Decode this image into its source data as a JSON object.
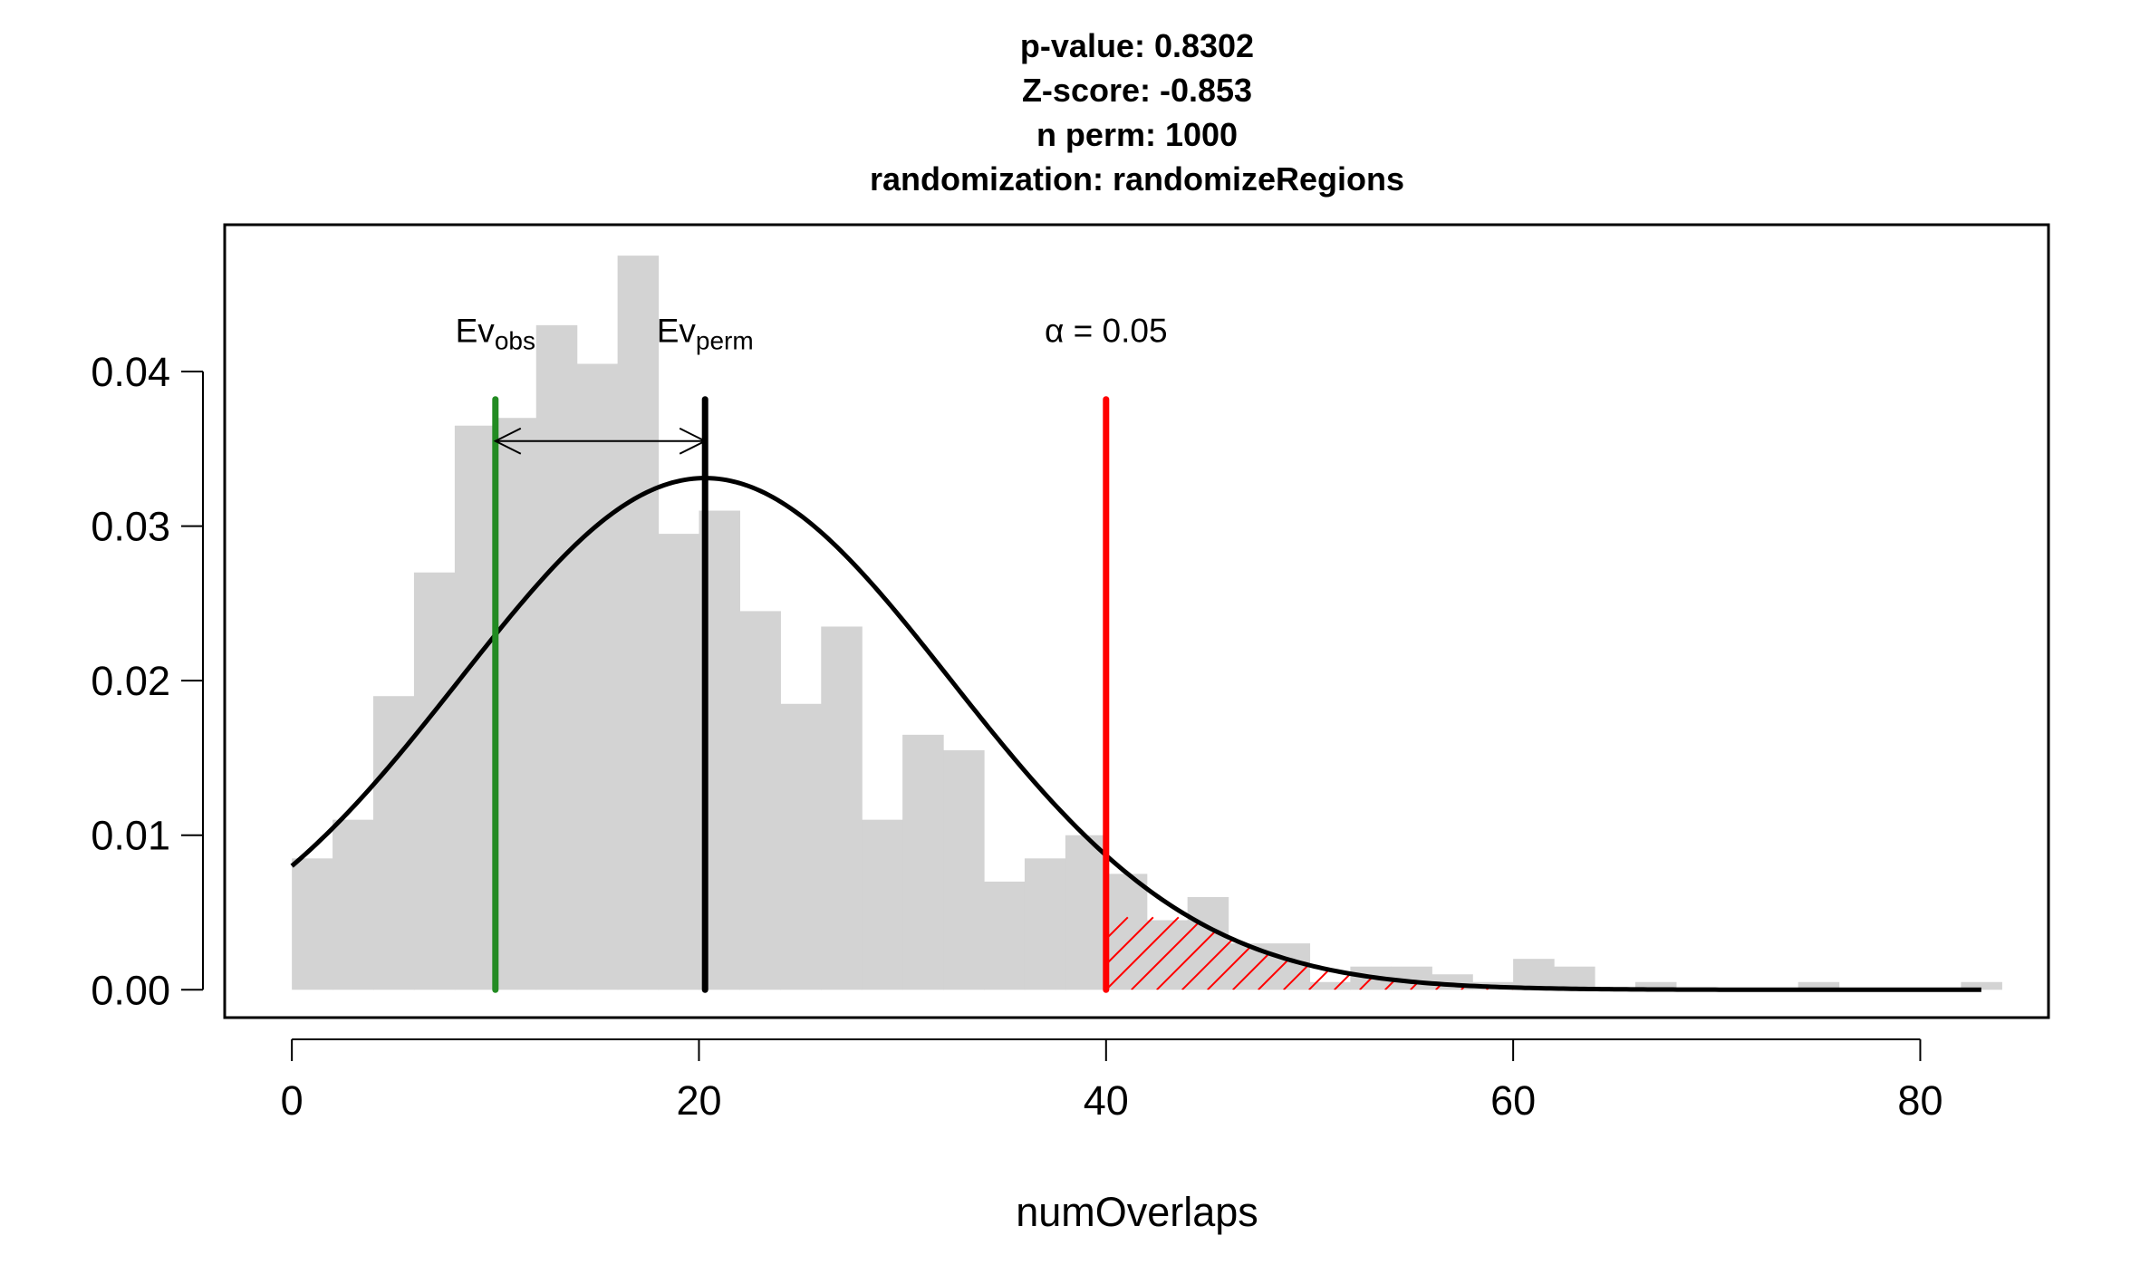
{
  "chart_data": {
    "type": "histogram",
    "title_lines": [
      "p-value:  0.8302",
      "Z-score:  -0.853",
      "n perm:  1000",
      "randomization:  randomizeRegions"
    ],
    "xlabel": "numOverlaps",
    "ylabel": "",
    "xlim": [
      -3.3,
      86.3
    ],
    "ylim": [
      -0.0018,
      0.0495
    ],
    "x_ticks": [
      0,
      20,
      40,
      60,
      80
    ],
    "y_ticks": [
      0.0,
      0.01,
      0.02,
      0.03,
      0.04
    ],
    "y_tick_labels": [
      "0.00",
      "0.01",
      "0.02",
      "0.03",
      "0.04"
    ],
    "bins": {
      "edges": [
        0,
        2,
        4,
        6,
        8,
        10,
        12,
        14,
        16,
        18,
        20,
        22,
        24,
        26,
        28,
        30,
        32,
        34,
        36,
        38,
        40,
        42,
        44,
        46,
        48,
        50,
        52,
        54,
        56,
        58,
        60,
        62,
        64,
        66,
        68,
        70,
        72,
        74,
        76,
        78,
        80,
        82,
        84
      ],
      "density": [
        0.0085,
        0.011,
        0.019,
        0.027,
        0.0365,
        0.037,
        0.043,
        0.0405,
        0.0475,
        0.0295,
        0.031,
        0.0245,
        0.0185,
        0.0235,
        0.011,
        0.0165,
        0.0155,
        0.007,
        0.0085,
        0.01,
        0.0075,
        0.0045,
        0.006,
        0.003,
        0.003,
        0.0005,
        0.0015,
        0.0015,
        0.001,
        0.0005,
        0.002,
        0.0015,
        0.0,
        0.0005,
        0.0,
        0.0,
        0.0,
        0.0005,
        0.0,
        0.0,
        0.0,
        0.0005
      ]
    },
    "normal_curve": {
      "mean": 20.3,
      "sd": 12.05,
      "x_from": 0,
      "x_to": 83
    },
    "ev_obs": {
      "x": 10,
      "label": "Ev",
      "sub": "obs",
      "color": "#228B22"
    },
    "ev_perm": {
      "x": 20.3,
      "label": "Ev",
      "sub": "perm",
      "color": "#000000"
    },
    "alpha": {
      "x": 40,
      "label": "α = 0.05",
      "color": "#FF0000"
    },
    "arrow_y": 0.0355,
    "line_top": 0.0382,
    "bar_color": "#D3D3D3"
  }
}
